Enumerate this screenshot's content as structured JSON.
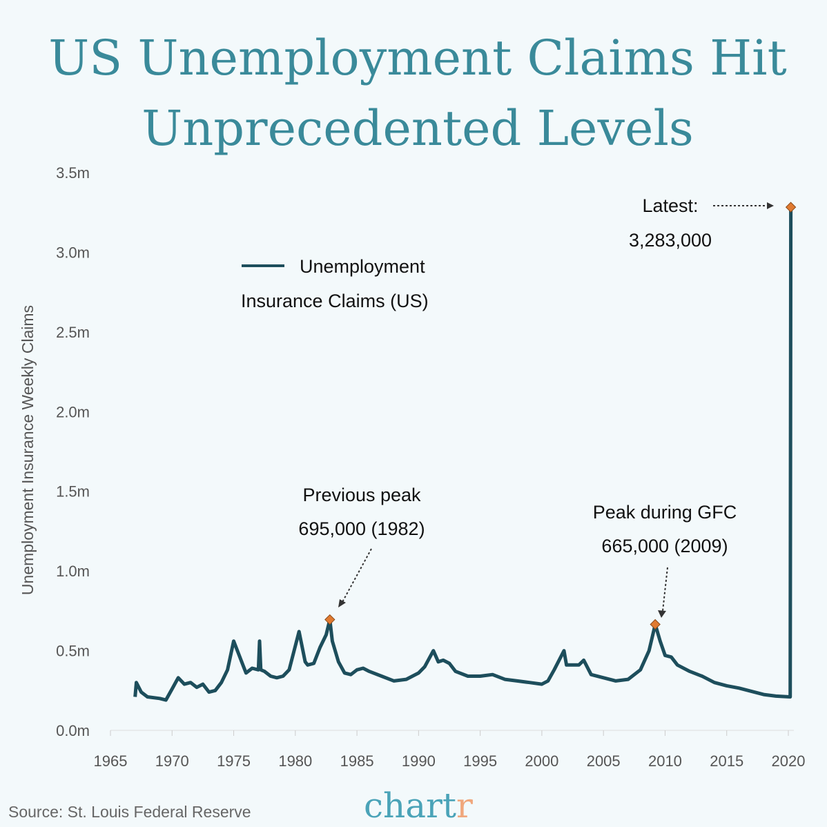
{
  "chart_data": {
    "type": "line",
    "title": [
      "US Unemployment Claims Hit",
      "Unprecedented Levels"
    ],
    "ylabel": "Unemployment Insurance Weekly Claims",
    "xlabel": "",
    "xlim": [
      1965,
      2020
    ],
    "ylim": [
      0,
      3.5
    ],
    "x_ticks": [
      "1965",
      "1970",
      "1975",
      "1980",
      "1985",
      "1990",
      "1995",
      "2000",
      "2005",
      "2010",
      "2015",
      "2020"
    ],
    "y_ticks": [
      "0.0m",
      "0.5m",
      "1.0m",
      "1.5m",
      "2.0m",
      "2.5m",
      "3.0m",
      "3.5m"
    ],
    "grid": false,
    "legend": {
      "position": "top-left",
      "entries": [
        "Unemployment",
        "Insurance Claims (US)"
      ]
    },
    "series": [
      {
        "name": "Unemployment Insurance Claims (US)",
        "color": "#1d4e5c",
        "unit": "thousands",
        "x": [
          1967.0,
          1967.1,
          1967.5,
          1968,
          1969,
          1969.5,
          1970,
          1970.5,
          1971,
          1971.5,
          1972,
          1972.5,
          1973,
          1973.5,
          1974,
          1974.5,
          1975.0,
          1975.3,
          1975.8,
          1976,
          1976.5,
          1977,
          1977.1,
          1977.2,
          1977.5,
          1978,
          1978.5,
          1979,
          1979.5,
          1980.3,
          1980.8,
          1981,
          1981.5,
          1982,
          1982.5,
          1982.8,
          1983,
          1983.5,
          1984,
          1984.5,
          1985,
          1985.5,
          1986,
          1987,
          1988,
          1989,
          1990,
          1990.5,
          1991.2,
          1991.6,
          1992,
          1992.5,
          1993,
          1994,
          1995,
          1996,
          1997,
          1998,
          1999,
          2000,
          2000.5,
          2001,
          2001.8,
          2002,
          2003,
          2003.4,
          2004,
          2005,
          2006,
          2007,
          2008,
          2008.7,
          2009.2,
          2009.6,
          2010,
          2010.5,
          2011,
          2012,
          2013,
          2014,
          2015,
          2016,
          2017,
          2018,
          2019,
          2020.15,
          2020.2
        ],
        "y": [
          210,
          300,
          240,
          210,
          200,
          190,
          260,
          330,
          290,
          300,
          270,
          290,
          240,
          250,
          300,
          380,
          560,
          500,
          400,
          360,
          390,
          380,
          560,
          380,
          370,
          340,
          330,
          340,
          380,
          620,
          430,
          410,
          420,
          520,
          600,
          695,
          560,
          430,
          360,
          350,
          380,
          390,
          370,
          340,
          310,
          320,
          360,
          400,
          500,
          430,
          440,
          420,
          370,
          340,
          340,
          350,
          320,
          310,
          300,
          290,
          310,
          380,
          500,
          410,
          410,
          440,
          350,
          330,
          310,
          320,
          380,
          500,
          665,
          560,
          470,
          460,
          410,
          370,
          340,
          300,
          280,
          265,
          245,
          225,
          215,
          210,
          3283
        ]
      }
    ],
    "annotations": [
      {
        "label": "Previous peak",
        "value_label": "695,000 (1982)",
        "x": 1982.8,
        "y": 695
      },
      {
        "label": "Peak during GFC",
        "value_label": "665,000 (2009)",
        "x": 2009.2,
        "y": 665
      },
      {
        "label": "Latest:",
        "value_label": "3,283,000",
        "x": 2020.2,
        "y": 3283
      }
    ],
    "marker_color": "#e07a30"
  },
  "footer": {
    "source": "Source: St. Louis Federal Reserve",
    "logo_main": "chart",
    "logo_end": "r",
    "logo_main_color": "#4aa3b8",
    "logo_end_color": "#f0a77c"
  }
}
